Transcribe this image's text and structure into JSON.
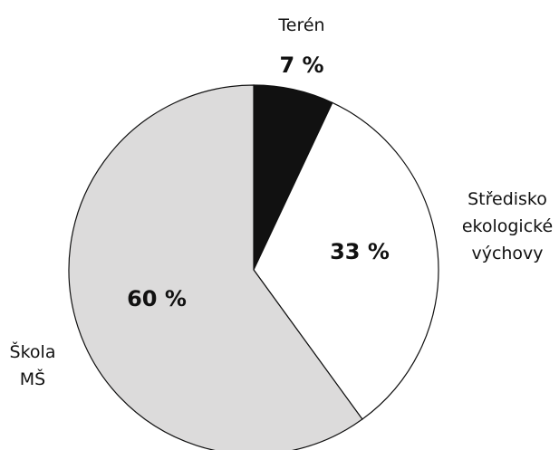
{
  "chart_data": {
    "type": "pie",
    "categories": [
      "Terén",
      "Středisko\nekologické\nvýchovy",
      "Škola\nMŠ"
    ],
    "values": [
      7,
      33,
      60
    ],
    "value_labels": [
      "7 %",
      "33 %",
      "60 %"
    ],
    "colors": [
      "#111111",
      "#ffffff",
      "#dcdbdb"
    ]
  }
}
